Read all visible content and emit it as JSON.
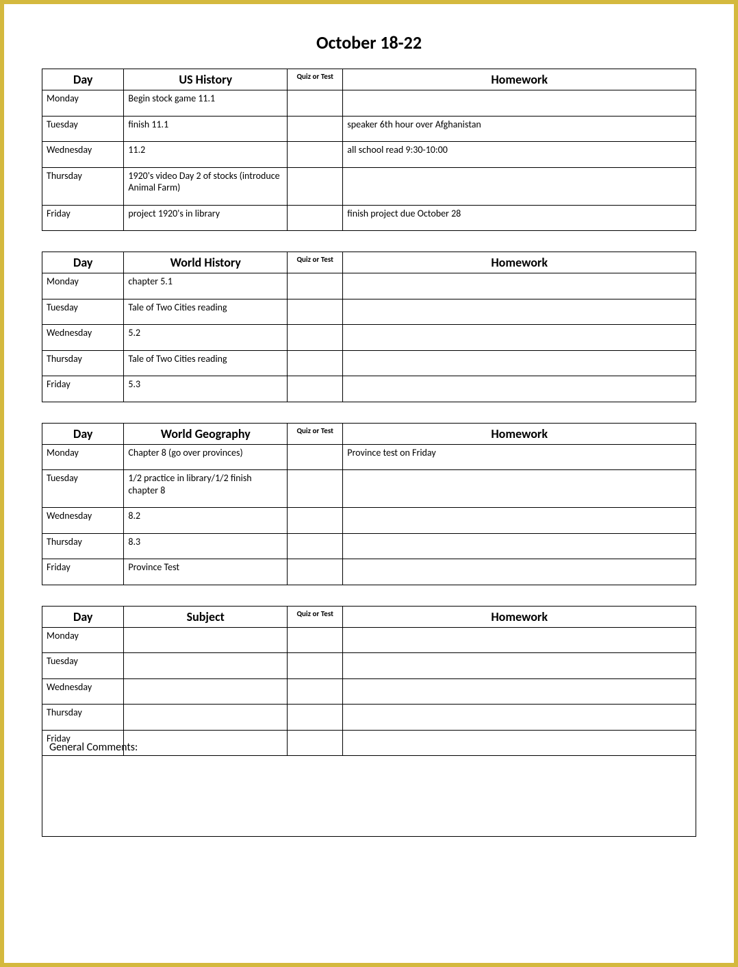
{
  "title": "October 18-22",
  "border_color": "#d4b93e",
  "background_color": "#ffffff",
  "text_color": "#000000",
  "grid_color": "#000000",
  "title_fontsize": 26,
  "header_fontsize": 18,
  "quiz_header_fontsize": 11,
  "body_fontsize": 14,
  "column_widths_pct": {
    "day": 12.5,
    "subject": 25,
    "quiz": 8.5,
    "homework": 54
  },
  "common_headers": {
    "day": "Day",
    "quiz": "Quiz or Test",
    "homework": "Homework"
  },
  "days": [
    "Monday",
    "Tuesday",
    "Wednesday",
    "Thursday",
    "Friday"
  ],
  "tables": [
    {
      "subject_header": "US History",
      "rows": [
        {
          "subject": "Begin stock game 11.1",
          "quiz": "",
          "homework": ""
        },
        {
          "subject": "finish 11.1",
          "quiz": "",
          "homework": "speaker 6th hour over Afghanistan"
        },
        {
          "subject": "11.2",
          "quiz": "",
          "homework": "all school read 9:30-10:00"
        },
        {
          "subject": "1920's video Day 2 of stocks (introduce Animal Farm)",
          "quiz": "",
          "homework": ""
        },
        {
          "subject": "project 1920's in library",
          "quiz": "",
          "homework": "finish project due  October 28"
        }
      ]
    },
    {
      "subject_header": "World History",
      "rows": [
        {
          "subject": "chapter 5.1",
          "quiz": "",
          "homework": ""
        },
        {
          "subject": "Tale of Two Cities reading",
          "quiz": "",
          "homework": ""
        },
        {
          "subject": "5.2",
          "quiz": "",
          "homework": ""
        },
        {
          "subject": "Tale of Two Cities reading",
          "quiz": "",
          "homework": ""
        },
        {
          "subject": "5.3",
          "quiz": "",
          "homework": ""
        }
      ]
    },
    {
      "subject_header": "World Geography",
      "rows": [
        {
          "subject": "Chapter 8 (go over provinces)",
          "quiz": "",
          "homework": "Province test on Friday"
        },
        {
          "subject": "1/2 practice in library/1/2 finish chapter 8",
          "quiz": "",
          "homework": ""
        },
        {
          "subject": "8.2",
          "quiz": "",
          "homework": ""
        },
        {
          "subject": "8.3",
          "quiz": "",
          "homework": ""
        },
        {
          "subject": "Province Test",
          "quiz": "",
          "homework": ""
        }
      ]
    },
    {
      "subject_header": "Subject",
      "rows": [
        {
          "subject": "",
          "quiz": "",
          "homework": ""
        },
        {
          "subject": "",
          "quiz": "",
          "homework": ""
        },
        {
          "subject": "",
          "quiz": "",
          "homework": ""
        },
        {
          "subject": "",
          "quiz": "",
          "homework": ""
        },
        {
          "subject": "",
          "quiz": "",
          "homework": ""
        }
      ]
    }
  ],
  "comments_label": "General Comments:",
  "comments_text": ""
}
